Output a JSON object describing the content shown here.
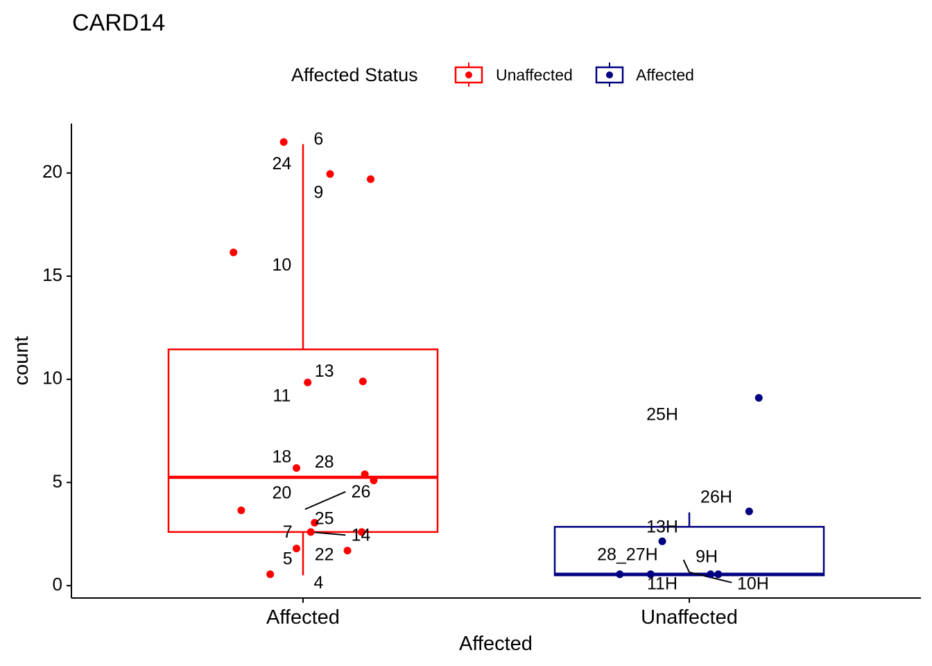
{
  "chart_data": {
    "type": "boxplot",
    "title": "CARD14",
    "xlabel": "Affected",
    "ylabel": "count",
    "categories": [
      "Affected",
      "Unaffected"
    ],
    "ylim": [
      -0.6,
      22.4
    ],
    "yticks": [
      0,
      5,
      10,
      15,
      20
    ],
    "grid": false,
    "legend": {
      "title": "Affected Status",
      "position": "top",
      "entries": [
        {
          "label": "Unaffected",
          "color": "#FF0000"
        },
        {
          "label": "Affected",
          "color": "#000080"
        }
      ]
    },
    "boxes": [
      {
        "category": "Affected",
        "color": "#FF0000",
        "whisker_low": 0.5,
        "q1": 2.6,
        "median": 5.25,
        "q3": 11.45,
        "whisker_high": 21.4
      },
      {
        "category": "Unaffected",
        "color": "#000080",
        "whisker_low": 0.5,
        "q1": 0.5,
        "median": 0.55,
        "q3": 2.85,
        "whisker_high": 3.55
      }
    ],
    "points": [
      {
        "group": "Affected",
        "jitter": -0.05,
        "y": 21.5
      },
      {
        "group": "Affected",
        "jitter": 0.07,
        "y": 19.95
      },
      {
        "group": "Affected",
        "jitter": 0.175,
        "y": 19.7
      },
      {
        "group": "Affected",
        "jitter": -0.18,
        "y": 16.15
      },
      {
        "group": "Affected",
        "jitter": 0.012,
        "y": 9.85
      },
      {
        "group": "Affected",
        "jitter": 0.155,
        "y": 9.9
      },
      {
        "group": "Affected",
        "jitter": -0.017,
        "y": 5.7
      },
      {
        "group": "Affected",
        "jitter": 0.16,
        "y": 5.4
      },
      {
        "group": "Affected",
        "jitter": 0.183,
        "y": 5.1
      },
      {
        "group": "Affected",
        "jitter": -0.16,
        "y": 3.65
      },
      {
        "group": "Affected",
        "jitter": 0.03,
        "y": 3.05
      },
      {
        "group": "Affected",
        "jitter": 0.02,
        "y": 2.6
      },
      {
        "group": "Affected",
        "jitter": 0.152,
        "y": 2.6
      },
      {
        "group": "Affected",
        "jitter": -0.017,
        "y": 1.8
      },
      {
        "group": "Affected",
        "jitter": 0.115,
        "y": 1.7
      },
      {
        "group": "Affected",
        "jitter": -0.085,
        "y": 0.55
      },
      {
        "group": "Unaffected",
        "jitter": 0.18,
        "y": 9.1
      },
      {
        "group": "Unaffected",
        "jitter": 0.155,
        "y": 3.6
      },
      {
        "group": "Unaffected",
        "jitter": -0.07,
        "y": 2.15
      },
      {
        "group": "Unaffected",
        "jitter": -0.18,
        "y": 0.55
      },
      {
        "group": "Unaffected",
        "jitter": -0.1,
        "y": 0.55
      },
      {
        "group": "Unaffected",
        "jitter": 0.055,
        "y": 0.55
      },
      {
        "group": "Unaffected",
        "jitter": 0.075,
        "y": 0.55
      }
    ],
    "point_labels": [
      {
        "text": "6",
        "group": "Affected",
        "offset": 0.04,
        "y": 21.6
      },
      {
        "text": "24",
        "group": "Affected",
        "offset": -0.055,
        "y": 20.4
      },
      {
        "text": "9",
        "group": "Affected",
        "offset": 0.04,
        "y": 19.0
      },
      {
        "text": "10",
        "group": "Affected",
        "offset": -0.055,
        "y": 15.5
      },
      {
        "text": "13",
        "group": "Affected",
        "offset": 0.055,
        "y": 10.35
      },
      {
        "text": "11",
        "group": "Affected",
        "offset": -0.055,
        "y": 9.15
      },
      {
        "text": "18",
        "group": "Affected",
        "offset": -0.055,
        "y": 6.2
      },
      {
        "text": "28",
        "group": "Affected",
        "offset": 0.055,
        "y": 5.95
      },
      {
        "text": "20",
        "group": "Affected",
        "offset": -0.055,
        "y": 4.45
      },
      {
        "text": "26",
        "group": "Affected",
        "offset": 0.15,
        "y": 4.5
      },
      {
        "text": "25",
        "group": "Affected",
        "offset": 0.055,
        "y": 3.2
      },
      {
        "text": "7",
        "group": "Affected",
        "offset": -0.04,
        "y": 2.55
      },
      {
        "text": "14",
        "group": "Affected",
        "offset": 0.15,
        "y": 2.4
      },
      {
        "text": "5",
        "group": "Affected",
        "offset": -0.04,
        "y": 1.25
      },
      {
        "text": "22",
        "group": "Affected",
        "offset": 0.055,
        "y": 1.45
      },
      {
        "text": "4",
        "group": "Affected",
        "offset": 0.04,
        "y": 0.1
      },
      {
        "text": "25H",
        "group": "Unaffected",
        "offset": -0.07,
        "y": 8.25
      },
      {
        "text": "26H",
        "group": "Unaffected",
        "offset": 0.07,
        "y": 4.25
      },
      {
        "text": "13H",
        "group": "Unaffected",
        "offset": -0.07,
        "y": 2.8
      },
      {
        "text": "28_27H",
        "group": "Unaffected",
        "offset": -0.16,
        "y": 1.45
      },
      {
        "text": "9H",
        "group": "Unaffected",
        "offset": 0.045,
        "y": 1.35
      },
      {
        "text": "11H",
        "group": "Unaffected",
        "offset": -0.07,
        "y": 0.05
      },
      {
        "text": "10H",
        "group": "Unaffected",
        "offset": 0.165,
        "y": 0.05
      }
    ],
    "leader_lines": [
      {
        "group": "Affected",
        "x1": 0.005,
        "y1": 3.7,
        "x2": 0.11,
        "y2": 4.55
      },
      {
        "group": "Affected",
        "x1": 0.02,
        "y1": 2.6,
        "x2": 0.11,
        "y2": 2.45
      },
      {
        "group": "Unaffected",
        "x1": -0.015,
        "y1": 1.25,
        "x2": 0.0,
        "y2": 0.65
      },
      {
        "group": "Unaffected",
        "x1": 0.0,
        "y1": 0.65,
        "x2": 0.11,
        "y2": 0.15
      }
    ]
  }
}
